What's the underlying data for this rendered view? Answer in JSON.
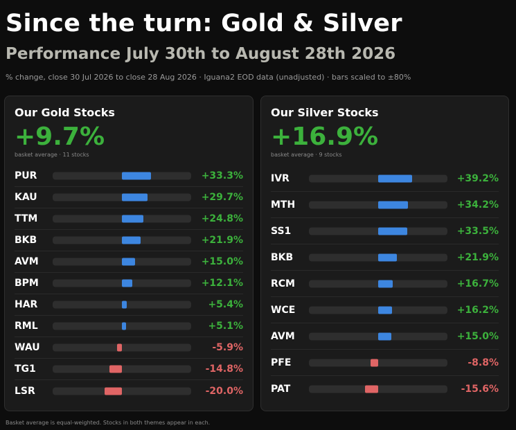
{
  "header": {
    "title": "Since the turn: Gold & Silver",
    "subtitle": "Performance July 30th to August 28th 2026",
    "note": "% change, close 30 Jul 2026 to close 28 Aug 2026 · Iguana2 EOD data (unadjusted) · bars scaled to ±80%"
  },
  "footer": "Basket average is equal-weighted. Stocks in both themes appear in each.",
  "colors": {
    "positive_bar": "#3d86e0",
    "negative_bar": "#e06565",
    "positive_text": "#3cb13c",
    "negative_text": "#e06565"
  },
  "chart_data": [
    {
      "type": "bar",
      "orientation": "horizontal",
      "title": "Our Gold Stocks",
      "average_label": "+9.7%",
      "average_note": "basket average · 11 stocks",
      "xlim": [
        -80,
        80
      ],
      "categories": [
        "PUR",
        "KAU",
        "TTM",
        "BKB",
        "AVM",
        "BPM",
        "HAR",
        "RML",
        "WAU",
        "TG1",
        "LSR"
      ],
      "values": [
        33.3,
        29.7,
        24.8,
        21.9,
        15.0,
        12.1,
        5.4,
        5.1,
        -5.9,
        -14.8,
        -20.0
      ],
      "labels": [
        "+33.3%",
        "+29.7%",
        "+24.8%",
        "+21.9%",
        "+15.0%",
        "+12.1%",
        "+5.4%",
        "+5.1%",
        "-5.9%",
        "-14.8%",
        "-20.0%"
      ]
    },
    {
      "type": "bar",
      "orientation": "horizontal",
      "title": "Our Silver Stocks",
      "average_label": "+16.9%",
      "average_note": "basket average · 9 stocks",
      "xlim": [
        -80,
        80
      ],
      "categories": [
        "IVR",
        "MTH",
        "SS1",
        "BKB",
        "RCM",
        "WCE",
        "AVM",
        "PFE",
        "PAT"
      ],
      "values": [
        39.2,
        34.2,
        33.5,
        21.9,
        16.7,
        16.2,
        15.0,
        -8.8,
        -15.6
      ],
      "labels": [
        "+39.2%",
        "+34.2%",
        "+33.5%",
        "+21.9%",
        "+16.7%",
        "+16.2%",
        "+15.0%",
        "-8.8%",
        "-15.6%"
      ]
    }
  ]
}
